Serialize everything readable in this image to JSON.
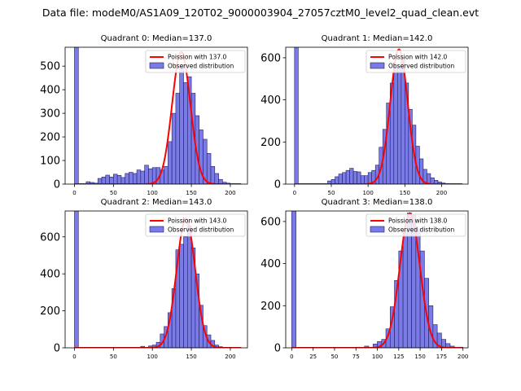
{
  "figure_title": "Data file: modeM0/AS1A09_120T02_9000003904_27057cztM0_level2_quad_clean.evt",
  "chart_data": [
    {
      "type": "bar",
      "title": "Quadrant 0: Median=137.0",
      "median": 137.0,
      "poisson_label": "Poission with 137.0",
      "observed_label": "Observed distribution",
      "bins": [
        [
          0,
          5,
          580
        ],
        [
          15,
          20,
          10
        ],
        [
          20,
          25,
          7
        ],
        [
          25,
          30,
          4
        ],
        [
          30,
          35,
          24
        ],
        [
          35,
          40,
          30
        ],
        [
          40,
          45,
          38
        ],
        [
          45,
          50,
          30
        ],
        [
          50,
          55,
          42
        ],
        [
          55,
          60,
          37
        ],
        [
          60,
          65,
          28
        ],
        [
          65,
          70,
          45
        ],
        [
          70,
          75,
          50
        ],
        [
          75,
          80,
          45
        ],
        [
          80,
          85,
          60
        ],
        [
          85,
          90,
          55
        ],
        [
          90,
          95,
          80
        ],
        [
          95,
          100,
          65
        ],
        [
          100,
          105,
          70
        ],
        [
          105,
          110,
          70
        ],
        [
          110,
          115,
          60
        ],
        [
          115,
          120,
          75
        ],
        [
          120,
          125,
          180
        ],
        [
          125,
          130,
          300
        ],
        [
          130,
          135,
          385
        ],
        [
          135,
          140,
          505
        ],
        [
          140,
          145,
          430
        ],
        [
          145,
          150,
          455
        ],
        [
          150,
          155,
          385
        ],
        [
          155,
          160,
          290
        ],
        [
          160,
          165,
          230
        ],
        [
          165,
          170,
          190
        ],
        [
          170,
          175,
          130
        ],
        [
          175,
          180,
          75
        ],
        [
          180,
          185,
          45
        ],
        [
          185,
          190,
          20
        ],
        [
          190,
          195,
          8
        ],
        [
          195,
          200,
          4
        ]
      ],
      "curve_peak": 560,
      "curve_sigma": 11.7,
      "xlim": [
        -12,
        222
      ],
      "ylim": [
        0,
        580
      ],
      "xticks": [
        0,
        50,
        100,
        150,
        200
      ],
      "yticks": [
        0,
        100,
        200,
        300,
        400,
        500
      ]
    },
    {
      "type": "bar",
      "title": "Quadrant 1: Median=142.0",
      "median": 142.0,
      "poisson_label": "Poission with 142.0",
      "observed_label": "Observed distribution",
      "bins": [
        [
          0,
          5,
          650
        ],
        [
          45,
          50,
          15
        ],
        [
          50,
          55,
          22
        ],
        [
          55,
          60,
          35
        ],
        [
          60,
          65,
          48
        ],
        [
          65,
          70,
          55
        ],
        [
          70,
          75,
          65
        ],
        [
          75,
          80,
          75
        ],
        [
          80,
          85,
          60
        ],
        [
          85,
          90,
          58
        ],
        [
          90,
          95,
          40
        ],
        [
          95,
          100,
          40
        ],
        [
          100,
          105,
          55
        ],
        [
          105,
          110,
          65
        ],
        [
          110,
          115,
          90
        ],
        [
          115,
          120,
          175
        ],
        [
          120,
          125,
          260
        ],
        [
          125,
          130,
          385
        ],
        [
          130,
          135,
          480
        ],
        [
          135,
          140,
          550
        ],
        [
          140,
          145,
          560
        ],
        [
          145,
          150,
          600
        ],
        [
          150,
          155,
          480
        ],
        [
          155,
          160,
          355
        ],
        [
          160,
          165,
          280
        ],
        [
          165,
          170,
          180
        ],
        [
          170,
          175,
          120
        ],
        [
          175,
          180,
          70
        ],
        [
          180,
          185,
          50
        ],
        [
          185,
          190,
          30
        ],
        [
          190,
          195,
          18
        ],
        [
          195,
          200,
          10
        ],
        [
          200,
          205,
          5
        ],
        [
          205,
          210,
          3
        ]
      ],
      "curve_peak": 640,
      "curve_sigma": 11.9,
      "xlim": [
        -12,
        236
      ],
      "ylim": [
        0,
        650
      ],
      "xticks": [
        0,
        50,
        100,
        150,
        200
      ],
      "yticks": [
        0,
        200,
        400,
        600
      ]
    },
    {
      "type": "bar",
      "title": "Quadrant 2: Median=143.0",
      "median": 143.0,
      "poisson_label": "Poission with 143.0",
      "observed_label": "Observed distribution",
      "bins": [
        [
          0,
          5,
          740
        ],
        [
          75,
          80,
          3
        ],
        [
          85,
          90,
          8
        ],
        [
          95,
          100,
          10
        ],
        [
          100,
          105,
          15
        ],
        [
          105,
          110,
          30
        ],
        [
          110,
          115,
          75
        ],
        [
          115,
          120,
          115
        ],
        [
          120,
          125,
          190
        ],
        [
          125,
          130,
          320
        ],
        [
          130,
          135,
          530
        ],
        [
          135,
          140,
          560
        ],
        [
          140,
          145,
          600
        ],
        [
          145,
          150,
          660
        ],
        [
          150,
          155,
          540
        ],
        [
          155,
          160,
          400
        ],
        [
          160,
          165,
          230
        ],
        [
          165,
          170,
          120
        ],
        [
          170,
          175,
          70
        ],
        [
          175,
          180,
          40
        ],
        [
          180,
          185,
          15
        ],
        [
          185,
          190,
          6
        ],
        [
          195,
          200,
          3
        ],
        [
          200,
          205,
          3
        ]
      ],
      "curve_peak": 700,
      "curve_sigma": 11.9,
      "xlim": [
        -12,
        222
      ],
      "ylim": [
        0,
        740
      ],
      "xticks": [
        0,
        50,
        100,
        150,
        200
      ],
      "yticks": [
        0,
        200,
        400,
        600
      ]
    },
    {
      "type": "bar",
      "title": "Quadrant 3: Median=138.0",
      "median": 138.0,
      "poisson_label": "Poission with 138.0",
      "observed_label": "Observed distribution",
      "bins": [
        [
          0,
          5,
          650
        ],
        [
          75,
          80,
          3
        ],
        [
          85,
          90,
          8
        ],
        [
          95,
          100,
          18
        ],
        [
          100,
          105,
          30
        ],
        [
          105,
          110,
          40
        ],
        [
          110,
          115,
          90
        ],
        [
          115,
          120,
          195
        ],
        [
          120,
          125,
          320
        ],
        [
          125,
          130,
          460
        ],
        [
          130,
          135,
          560
        ],
        [
          135,
          140,
          640
        ],
        [
          140,
          145,
          630
        ],
        [
          145,
          150,
          565
        ],
        [
          150,
          155,
          460
        ],
        [
          155,
          160,
          330
        ],
        [
          160,
          165,
          200
        ],
        [
          165,
          170,
          110
        ],
        [
          170,
          175,
          70
        ],
        [
          175,
          180,
          40
        ],
        [
          180,
          185,
          20
        ],
        [
          185,
          190,
          8
        ],
        [
          190,
          195,
          3
        ],
        [
          195,
          200,
          3
        ]
      ],
      "curve_peak": 640,
      "curve_sigma": 11.7,
      "xlim": [
        -7,
        206
      ],
      "ylim": [
        0,
        650
      ],
      "xticks": [
        0,
        25,
        50,
        75,
        100,
        125,
        150,
        175,
        200
      ],
      "yticks": [
        0,
        200,
        400,
        600
      ]
    }
  ],
  "colors": {
    "bar_fill": "#7b7be8",
    "bar_edge": "#1f1f60",
    "curve": "#ff0000",
    "axis": "#000000"
  }
}
